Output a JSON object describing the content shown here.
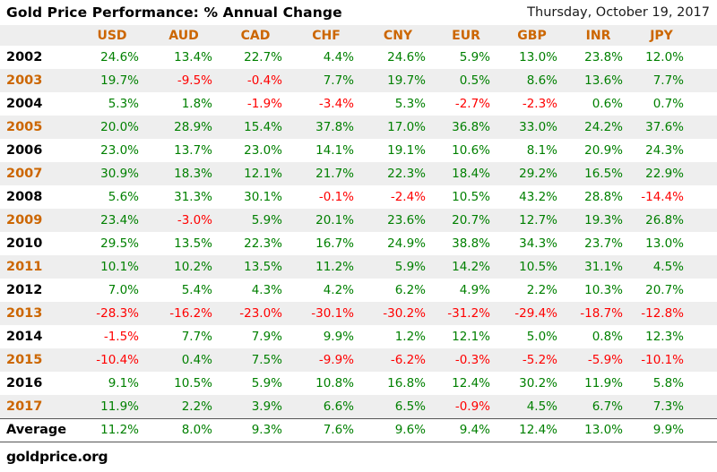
{
  "header": {
    "title": "Gold Price Performance: % Annual Change",
    "date": "Thursday, October 19, 2017"
  },
  "footer": {
    "site_label": "goldprice.org"
  },
  "colors": {
    "positive_green": "#008000",
    "negative_red": "#ff0000",
    "accent_orange": "#cc6600",
    "band_gray": "#eeeeee",
    "rule_gray": "#555555"
  },
  "chart_data": {
    "type": "table",
    "title": "Gold Price Performance: % Annual Change",
    "date_label": "Thursday, October 19, 2017",
    "value_unit": "percent",
    "columns": [
      "USD",
      "AUD",
      "CAD",
      "CHF",
      "CNY",
      "EUR",
      "GBP",
      "INR",
      "JPY"
    ],
    "rows": [
      {
        "year": "2002",
        "values": [
          24.6,
          13.4,
          22.7,
          4.4,
          24.6,
          5.9,
          13.0,
          23.8,
          12.0
        ]
      },
      {
        "year": "2003",
        "values": [
          19.7,
          -9.5,
          -0.4,
          7.7,
          19.7,
          0.5,
          8.6,
          13.6,
          7.7
        ]
      },
      {
        "year": "2004",
        "values": [
          5.3,
          1.8,
          -1.9,
          -3.4,
          5.3,
          -2.7,
          -2.3,
          0.6,
          0.7
        ]
      },
      {
        "year": "2005",
        "values": [
          20.0,
          28.9,
          15.4,
          37.8,
          17.0,
          36.8,
          33.0,
          24.2,
          37.6
        ]
      },
      {
        "year": "2006",
        "values": [
          23.0,
          13.7,
          23.0,
          14.1,
          19.1,
          10.6,
          8.1,
          20.9,
          24.3
        ]
      },
      {
        "year": "2007",
        "values": [
          30.9,
          18.3,
          12.1,
          21.7,
          22.3,
          18.4,
          29.2,
          16.5,
          22.9
        ]
      },
      {
        "year": "2008",
        "values": [
          5.6,
          31.3,
          30.1,
          -0.1,
          -2.4,
          10.5,
          43.2,
          28.8,
          -14.4
        ]
      },
      {
        "year": "2009",
        "values": [
          23.4,
          -3.0,
          5.9,
          20.1,
          23.6,
          20.7,
          12.7,
          19.3,
          26.8
        ]
      },
      {
        "year": "2010",
        "values": [
          29.5,
          13.5,
          22.3,
          16.7,
          24.9,
          38.8,
          34.3,
          23.7,
          13.0
        ]
      },
      {
        "year": "2011",
        "values": [
          10.1,
          10.2,
          13.5,
          11.2,
          5.9,
          14.2,
          10.5,
          31.1,
          4.5
        ]
      },
      {
        "year": "2012",
        "values": [
          7.0,
          5.4,
          4.3,
          4.2,
          6.2,
          4.9,
          2.2,
          10.3,
          20.7
        ]
      },
      {
        "year": "2013",
        "values": [
          -28.3,
          -16.2,
          -23.0,
          -30.1,
          -30.2,
          -31.2,
          -29.4,
          -18.7,
          -12.8
        ]
      },
      {
        "year": "2014",
        "values": [
          -1.5,
          7.7,
          7.9,
          9.9,
          1.2,
          12.1,
          5.0,
          0.8,
          12.3
        ]
      },
      {
        "year": "2015",
        "values": [
          -10.4,
          0.4,
          7.5,
          -9.9,
          -6.2,
          -0.3,
          -5.2,
          -5.9,
          -10.1
        ]
      },
      {
        "year": "2016",
        "values": [
          9.1,
          10.5,
          5.9,
          10.8,
          16.8,
          12.4,
          30.2,
          11.9,
          5.8
        ]
      },
      {
        "year": "2017",
        "values": [
          11.9,
          2.2,
          3.9,
          6.6,
          6.5,
          -0.9,
          4.5,
          6.7,
          7.3
        ]
      }
    ],
    "average_row": {
      "label": "Average",
      "values": [
        11.2,
        8.0,
        9.3,
        7.6,
        9.6,
        9.4,
        12.4,
        13.0,
        9.9
      ]
    }
  }
}
